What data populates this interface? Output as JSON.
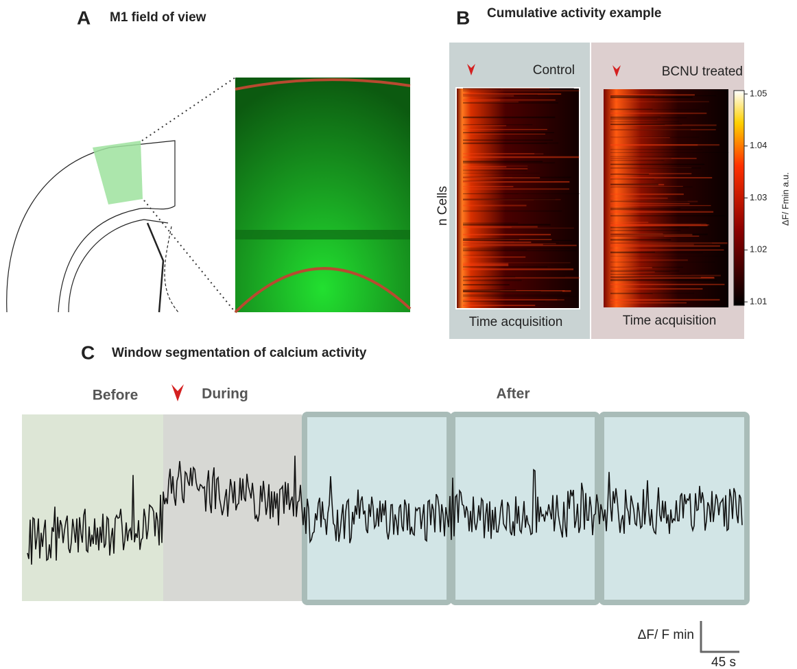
{
  "panels": [
    {
      "letter": "A",
      "title": "M1 field of view"
    },
    {
      "letter": "B",
      "title": "Cumulative activity example",
      "conditions": [
        {
          "name": "Control",
          "x_label": "Time acquisition"
        },
        {
          "name": "BCNU treated",
          "x_label": "Time acquisition"
        }
      ],
      "y_label": "n Cells",
      "colorbar": {
        "label": "ΔF/ Fmin  a.u.",
        "ticks": [
          "1.05",
          "1.04",
          "1.03",
          "1.02",
          "1.01"
        ]
      }
    },
    {
      "letter": "C",
      "title": "Window segmentation of calcium activity",
      "windows": [
        "Before",
        "During",
        "After"
      ],
      "scale_bar": {
        "y": "ΔF/ F min",
        "x": "45 s"
      }
    }
  ]
}
